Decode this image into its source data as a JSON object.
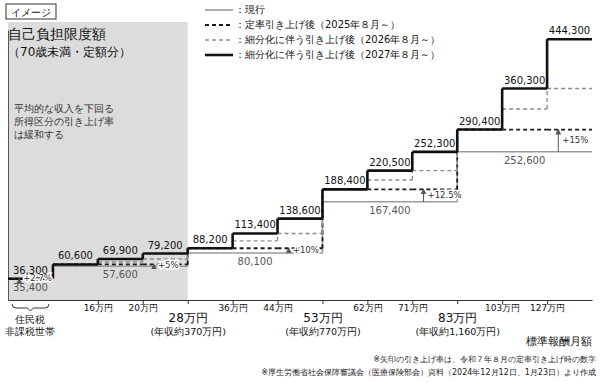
{
  "chart_data": {
    "type": "step",
    "badge": "イメージ",
    "title": "自己負担限度額",
    "subtitle": "（70歳未満・定額分）",
    "x_label": "標準報酬月額",
    "categories": [
      "住民税\n非課税世帯",
      null,
      null,
      null,
      null,
      null,
      null,
      null,
      null,
      null,
      null,
      null,
      null
    ],
    "boundaries": [
      null,
      "16万円",
      "20万円",
      "28万円\n(年収約370万円)",
      "36万円",
      "44万円",
      "53万円\n(年収約770万円)",
      "62万円",
      "71万円",
      "83万円\n(年収約1,160万円)",
      "103万円",
      "127万円"
    ],
    "series": [
      {
        "name": "：現行",
        "color": "#9a9a9a",
        "line_style": "solid",
        "data_labels": true,
        "values": [
          35400,
          57600,
          57600,
          57600,
          80100,
          80100,
          80100,
          167400,
          167400,
          167400,
          252600,
          252600,
          252600
        ],
        "value_labels": [
          "35,400",
          null,
          "57,600",
          null,
          null,
          "80,100",
          null,
          null,
          "167,400",
          null,
          null,
          "252,600",
          null
        ]
      },
      {
        "name": "：定率引き上げ後（2025年８月～）",
        "color": "#1a1a1a",
        "line_style": "dashed",
        "values": [
          36300,
          60600,
          60600,
          60600,
          88200,
          88200,
          88200,
          188400,
          188400,
          188400,
          290400,
          290400,
          290400
        ]
      },
      {
        "name": "：細分化に伴う引き上げ後（2026年８月～）",
        "color": "#8c8c8c",
        "line_style": "dashed",
        "values": [
          36300,
          60600,
          64800,
          69900,
          88200,
          100800,
          113400,
          188400,
          204500,
          220500,
          290400,
          325400,
          360300
        ]
      },
      {
        "name": "：細分化に伴う引き上げ後（2027年８月～）",
        "color": "#111111",
        "line_style": "solid",
        "data_labels": true,
        "values": [
          36300,
          60600,
          69900,
          79200,
          88200,
          113400,
          138600,
          188400,
          220500,
          252300,
          290400,
          360300,
          444300
        ],
        "value_labels": [
          "36,300",
          "60,600",
          "69,900",
          "79,200",
          "88,200",
          "113,400",
          "138,600",
          "188,400",
          "220,500",
          "252,300",
          "290,400",
          "360,300",
          "444,300"
        ]
      }
    ],
    "ylim": [
      0,
      460000
    ],
    "yticks": [],
    "tick_labels": "x",
    "legend": "top",
    "shaded_region": {
      "start": 0,
      "end": 3,
      "text": "平均的な収入を下回る\n所得区分の引き上げ率\nは緩和する"
    },
    "annotations": [
      {
        "category": 0,
        "text": "+2.7%"
      },
      {
        "category": 3,
        "text": "+5%"
      },
      {
        "category": 6,
        "text": "+10%"
      },
      {
        "category": 9,
        "text": "+12.5%"
      },
      {
        "category": 12,
        "text": "+15%"
      }
    ],
    "notes": [
      "※矢印の引き上げ率は、令和７年８月の定率引き上げ時の数字",
      "※厚生労働省社会保障審議会（医療保険部会）資料（2024年12月12日、1月23日）より作成"
    ]
  }
}
